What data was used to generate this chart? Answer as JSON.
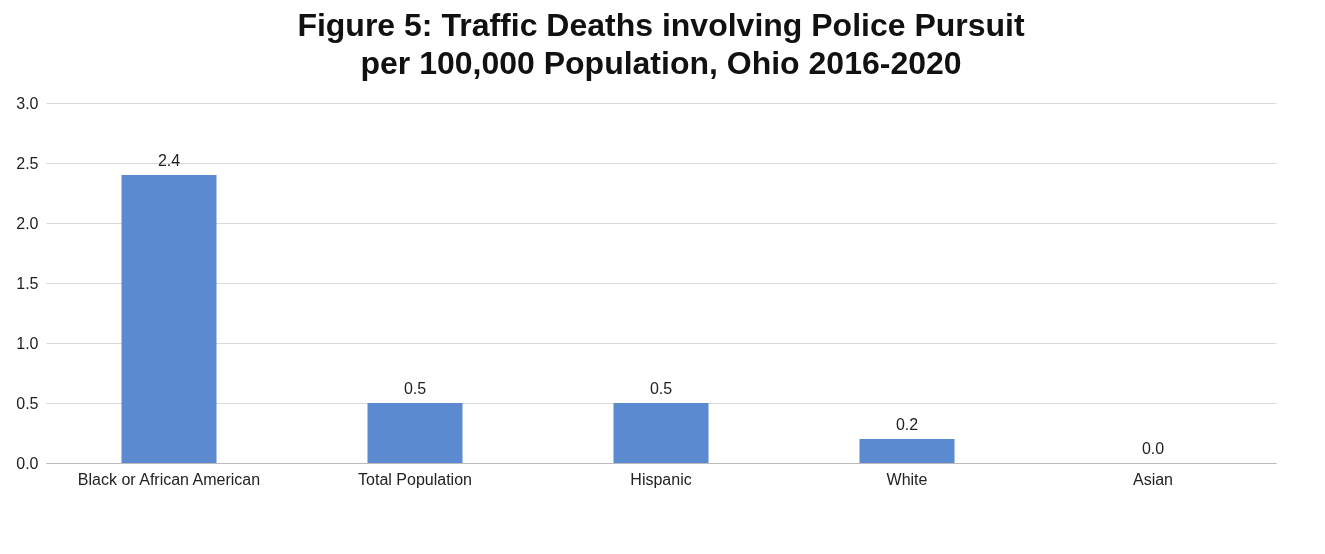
{
  "chart_data": {
    "type": "bar",
    "title": "Figure 5: Traffic Deaths involving Police Pursuit per 100,000 Population, Ohio 2016-2020",
    "categories": [
      "Black or African American",
      "Total Population",
      "Hispanic",
      "White",
      "Asian"
    ],
    "values": [
      2.4,
      0.5,
      0.5,
      0.2,
      0.0
    ],
    "value_labels": [
      "2.4",
      "0.5",
      "0.5",
      "0.2",
      "0.0"
    ],
    "color": "#5b8ad0",
    "ylim": [
      0,
      3
    ],
    "yticks": [
      {
        "value": 0,
        "label": "0.0"
      },
      {
        "value": 0.5,
        "label": "0.5"
      },
      {
        "value": 1,
        "label": "1.0"
      },
      {
        "value": 1.5,
        "label": "1.5"
      },
      {
        "value": 2,
        "label": "2.0"
      },
      {
        "value": 2.5,
        "label": "2.5"
      },
      {
        "value": 3,
        "label": "3.0"
      }
    ],
    "grid": "y"
  }
}
